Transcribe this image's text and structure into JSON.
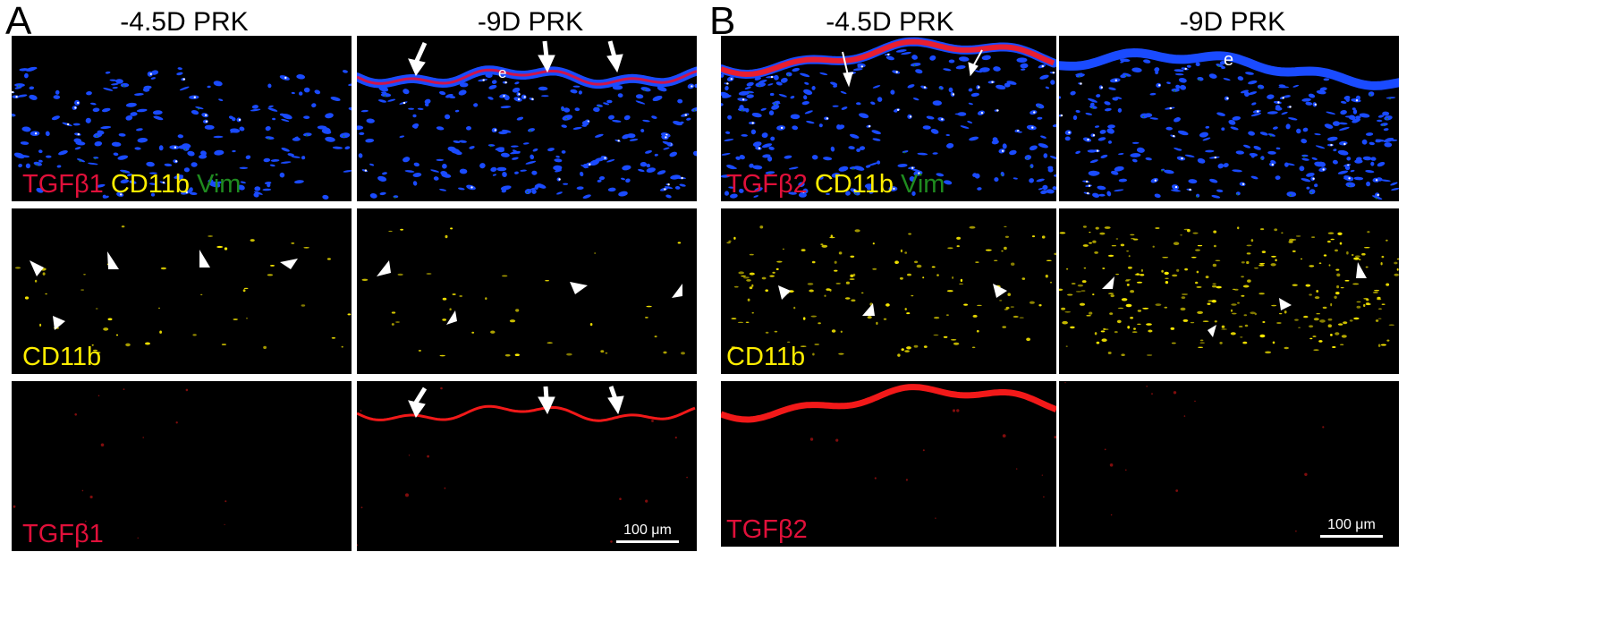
{
  "panels": [
    {
      "letter": "A",
      "columns": [
        "-4.5D PRK",
        "-9D PRK"
      ],
      "labels": {
        "merge": [
          "TGFβ1",
          "CD11b",
          "Vim"
        ],
        "cd11b": "CD11b",
        "tgf": "TGFβ1"
      },
      "epi_mark": "e",
      "scale": "100 μm"
    },
    {
      "letter": "B",
      "columns": [
        "-4.5D PRK",
        "-9D PRK"
      ],
      "labels": {
        "merge": [
          "TGFβ2",
          "CD11b",
          "Vim"
        ],
        "cd11b": "CD11b",
        "tgf": "TGFβ2"
      },
      "epi_mark": "e",
      "scale": "100 μm"
    }
  ],
  "colors": {
    "tgf": "#e0103a",
    "tgf_signal": "#ff1a1a",
    "cd11b": "#ffee00",
    "vim": "#1f8a1f",
    "nuclei": "#1a4bff",
    "marker": "#ffffff"
  }
}
